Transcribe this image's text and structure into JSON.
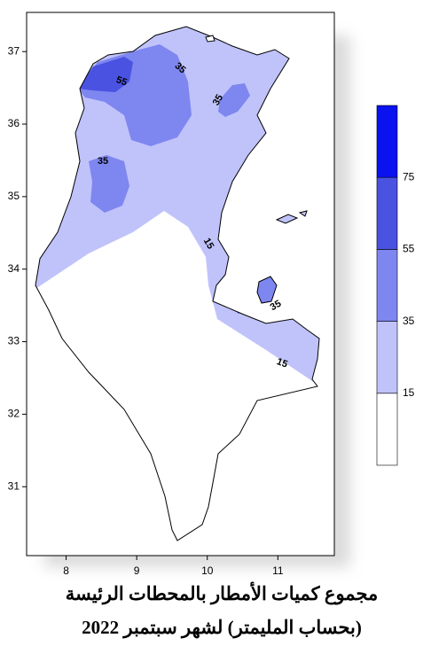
{
  "map": {
    "title_lines": [
      "مجموع كميات الأمطار بالمحطات الرئيسة",
      "(بحساب المليمتر)  لشهر سبتمبر 2022"
    ],
    "xlim": [
      7.44,
      11.8
    ],
    "xticks": [
      8,
      9,
      10,
      11
    ],
    "ylim": [
      30.05,
      37.54
    ],
    "yticks": [
      31,
      32,
      33,
      34,
      35,
      36,
      37
    ],
    "legend": {
      "levels": [
        15,
        35,
        55,
        75
      ],
      "colors": [
        "#ffffff",
        "#c0c3fa",
        "#7e86f0",
        "#4a52e2",
        "#0a12f0"
      ]
    },
    "contour_labels": [
      55,
      35,
      35,
      35,
      15,
      35,
      15
    ]
  }
}
